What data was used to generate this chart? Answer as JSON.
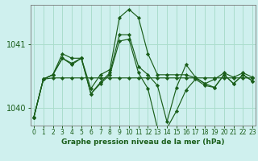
{
  "title": "Graphe pression niveau de la mer (hPa)",
  "background_color": "#cff0ee",
  "grid_color": "#aaddcc",
  "line_color": "#1a5e1a",
  "marker_color": "#1a5e1a",
  "xlim": [
    -0.3,
    23.3
  ],
  "ylim": [
    1039.72,
    1041.62
  ],
  "yticks": [
    1040,
    1041
  ],
  "xticks": [
    0,
    1,
    2,
    3,
    4,
    5,
    6,
    7,
    8,
    9,
    10,
    11,
    12,
    13,
    14,
    15,
    16,
    17,
    18,
    19,
    20,
    21,
    22,
    23
  ],
  "series": [
    [
      1039.85,
      1040.45,
      1040.47,
      1040.47,
      1040.47,
      1040.47,
      1040.47,
      1040.47,
      1040.47,
      1040.47,
      1040.47,
      1040.47,
      1040.47,
      1040.47,
      1040.47,
      1040.47,
      1040.47,
      1040.47,
      1040.47,
      1040.47,
      1040.47,
      1040.47,
      1040.47,
      1040.47
    ],
    [
      1039.85,
      1040.45,
      1040.52,
      1040.78,
      1040.68,
      1040.78,
      1040.3,
      1040.52,
      1040.6,
      1041.42,
      1041.55,
      1041.42,
      1040.85,
      1040.52,
      1040.52,
      1040.52,
      1040.52,
      1040.47,
      1040.38,
      1040.45,
      1040.55,
      1040.48,
      1040.55,
      1040.48
    ],
    [
      1039.85,
      1040.45,
      1040.52,
      1040.78,
      1040.7,
      1040.78,
      1040.22,
      1040.4,
      1040.55,
      1041.15,
      1041.15,
      1040.65,
      1040.52,
      1040.35,
      1039.78,
      1040.32,
      1040.68,
      1040.48,
      1040.38,
      1040.32,
      1040.52,
      1040.38,
      1040.52,
      1040.42
    ],
    [
      1039.85,
      1040.45,
      1040.52,
      1040.85,
      1040.78,
      1040.78,
      1040.22,
      1040.38,
      1040.52,
      1041.05,
      1041.08,
      1040.55,
      1040.3,
      1039.68,
      1039.68,
      1039.95,
      1040.28,
      1040.45,
      1040.35,
      1040.32,
      1040.52,
      1040.38,
      1040.52,
      1040.42
    ]
  ]
}
